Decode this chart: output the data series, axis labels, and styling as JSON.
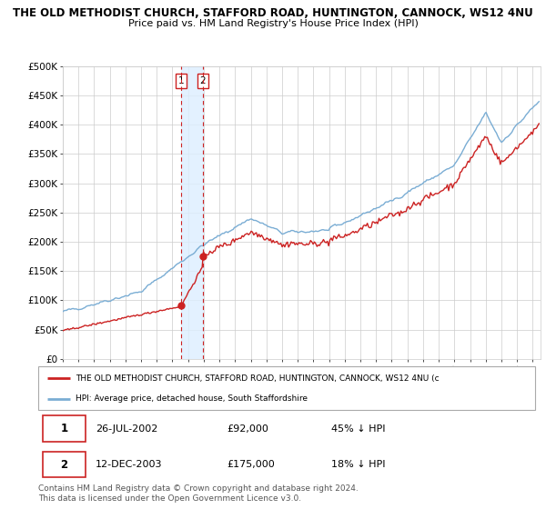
{
  "title": "THE OLD METHODIST CHURCH, STAFFORD ROAD, HUNTINGTON, CANNOCK, WS12 4NU",
  "subtitle": "Price paid vs. HM Land Registry's House Price Index (HPI)",
  "ylabel_ticks": [
    "£0",
    "£50K",
    "£100K",
    "£150K",
    "£200K",
    "£250K",
    "£300K",
    "£350K",
    "£400K",
    "£450K",
    "£500K"
  ],
  "ytick_values": [
    0,
    50000,
    100000,
    150000,
    200000,
    250000,
    300000,
    350000,
    400000,
    450000,
    500000
  ],
  "ylim": [
    0,
    500000
  ],
  "xlim_start": 1995.0,
  "xlim_end": 2025.5,
  "hpi_color": "#7aadd4",
  "price_color": "#cc2222",
  "vline_color": "#cc2222",
  "shade_color": "#ddeeff",
  "transaction1_date": 2002.57,
  "transaction1_price": 92000,
  "transaction1_label": "1",
  "transaction2_date": 2003.95,
  "transaction2_price": 175000,
  "transaction2_label": "2",
  "legend_property_label": "THE OLD METHODIST CHURCH, STAFFORD ROAD, HUNTINGTON, CANNOCK, WS12 4NU (c",
  "legend_hpi_label": "HPI: Average price, detached house, South Staffordshire",
  "table_row1": [
    "1",
    "26-JUL-2002",
    "£92,000",
    "45% ↓ HPI"
  ],
  "table_row2": [
    "2",
    "12-DEC-2003",
    "£175,000",
    "18% ↓ HPI"
  ],
  "footer": "Contains HM Land Registry data © Crown copyright and database right 2024.\nThis data is licensed under the Open Government Licence v3.0.",
  "background_color": "#ffffff",
  "grid_color": "#cccccc"
}
